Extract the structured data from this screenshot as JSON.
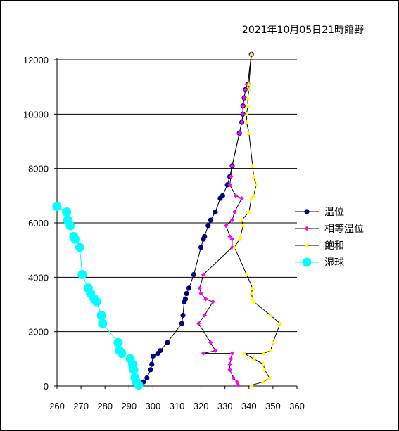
{
  "chart_data": {
    "type": "line",
    "title": "2021年10月05日21時館野",
    "xlabel": "",
    "ylabel": "",
    "xlim": [
      260,
      360
    ],
    "ylim": [
      0,
      12000
    ],
    "xticks": [
      260,
      270,
      280,
      290,
      300,
      310,
      320,
      330,
      340,
      350,
      360
    ],
    "yticks": [
      0,
      2000,
      4000,
      6000,
      8000,
      10000,
      12000
    ],
    "grid": "horizontal",
    "legend_position": "right",
    "series": [
      {
        "name": "温位",
        "color": "#000080",
        "marker": "circle",
        "points": [
          [
            294.5,
            30
          ],
          [
            296.0,
            150
          ],
          [
            297.5,
            300
          ],
          [
            299.0,
            600
          ],
          [
            299.5,
            800
          ],
          [
            300.0,
            1100
          ],
          [
            302.0,
            1200
          ],
          [
            303.0,
            1300
          ],
          [
            306.0,
            1600
          ],
          [
            312.0,
            2300
          ],
          [
            312.5,
            2600
          ],
          [
            313.0,
            3100
          ],
          [
            313.5,
            3200
          ],
          [
            314.0,
            3400
          ],
          [
            315.0,
            3600
          ],
          [
            317.0,
            4100
          ],
          [
            320.0,
            5100
          ],
          [
            321.0,
            5400
          ],
          [
            321.5,
            5500
          ],
          [
            323.0,
            5900
          ],
          [
            324.0,
            6100
          ],
          [
            326.0,
            6400
          ],
          [
            328.0,
            6900
          ],
          [
            329.0,
            7000
          ],
          [
            331.0,
            7400
          ],
          [
            332.0,
            7700
          ],
          [
            333.0,
            8100
          ],
          [
            336.0,
            9300
          ],
          [
            337.0,
            9700
          ],
          [
            337.5,
            10000
          ],
          [
            337.5,
            10300
          ],
          [
            338.0,
            10600
          ],
          [
            338.5,
            10900
          ],
          [
            339.5,
            11100
          ],
          [
            341.0,
            12200
          ]
        ]
      },
      {
        "name": "相等温位",
        "color": "#ff00ff",
        "marker": "diamond",
        "points": [
          [
            335.5,
            30
          ],
          [
            335.0,
            150
          ],
          [
            333.5,
            300
          ],
          [
            332.0,
            600
          ],
          [
            332.0,
            800
          ],
          [
            332.5,
            1000
          ],
          [
            333.0,
            1200
          ],
          [
            321.0,
            1200
          ],
          [
            326.0,
            1300
          ],
          [
            324.0,
            1600
          ],
          [
            319.0,
            2300
          ],
          [
            321.5,
            2600
          ],
          [
            325.0,
            3100
          ],
          [
            322.0,
            3200
          ],
          [
            320.0,
            3400
          ],
          [
            319.5,
            3600
          ],
          [
            321.0,
            4100
          ],
          [
            333.0,
            5100
          ],
          [
            333.0,
            5400
          ],
          [
            332.0,
            5500
          ],
          [
            330.5,
            5900
          ],
          [
            333.0,
            6100
          ],
          [
            334.0,
            6400
          ],
          [
            337.0,
            6900
          ],
          [
            334.5,
            7000
          ],
          [
            332.0,
            7400
          ],
          [
            332.5,
            7700
          ],
          [
            333.0,
            8100
          ],
          [
            336.0,
            9300
          ],
          [
            337.0,
            9700
          ],
          [
            337.5,
            10000
          ],
          [
            337.5,
            10300
          ],
          [
            338.0,
            10600
          ],
          [
            338.5,
            10900
          ],
          [
            339.5,
            11100
          ],
          [
            341.0,
            12200
          ]
        ]
      },
      {
        "name": "飽和",
        "color": "#ffff00",
        "marker": "triangle",
        "points": [
          [
            341.0,
            30
          ],
          [
            346.0,
            150
          ],
          [
            348.5,
            300
          ],
          [
            346.5,
            600
          ],
          [
            346.0,
            800
          ],
          [
            342.0,
            1000
          ],
          [
            338.0,
            1200
          ],
          [
            346.0,
            1200
          ],
          [
            349.0,
            1300
          ],
          [
            350.0,
            1600
          ],
          [
            353.0,
            2300
          ],
          [
            349.0,
            2600
          ],
          [
            342.0,
            3100
          ],
          [
            341.5,
            3200
          ],
          [
            341.0,
            3400
          ],
          [
            341.5,
            3600
          ],
          [
            339.0,
            4100
          ],
          [
            334.0,
            5100
          ],
          [
            336.0,
            5400
          ],
          [
            336.5,
            5500
          ],
          [
            337.5,
            5900
          ],
          [
            337.0,
            6100
          ],
          [
            340.0,
            6400
          ],
          [
            341.0,
            6900
          ],
          [
            342.0,
            7000
          ],
          [
            343.0,
            7400
          ],
          [
            342.0,
            7700
          ],
          [
            341.5,
            8100
          ],
          [
            340.0,
            9300
          ],
          [
            339.0,
            9700
          ],
          [
            339.0,
            10000
          ],
          [
            339.5,
            10300
          ],
          [
            339.5,
            10600
          ],
          [
            340.0,
            10900
          ],
          [
            340.0,
            11100
          ],
          [
            341.0,
            12200
          ]
        ]
      },
      {
        "name": "湿球",
        "color": "#00ffff",
        "marker": "circle-large",
        "points": [
          [
            294.0,
            30
          ],
          [
            293.0,
            150
          ],
          [
            292.5,
            300
          ],
          [
            292.0,
            600
          ],
          [
            291.5,
            800
          ],
          [
            290.5,
            1000
          ],
          [
            287.0,
            1200
          ],
          [
            286.0,
            1300
          ],
          [
            285.5,
            1600
          ],
          [
            279.0,
            2300
          ],
          [
            278.5,
            2600
          ],
          [
            276.5,
            3100
          ],
          [
            275.5,
            3200
          ],
          [
            274.0,
            3400
          ],
          [
            273.0,
            3600
          ],
          [
            270.5,
            4100
          ],
          [
            269.5,
            5100
          ],
          [
            267.5,
            5400
          ],
          [
            267.0,
            5500
          ],
          [
            265.5,
            5900
          ],
          [
            264.5,
            6100
          ],
          [
            264.0,
            6400
          ],
          [
            260.0,
            6600
          ]
        ]
      }
    ]
  }
}
